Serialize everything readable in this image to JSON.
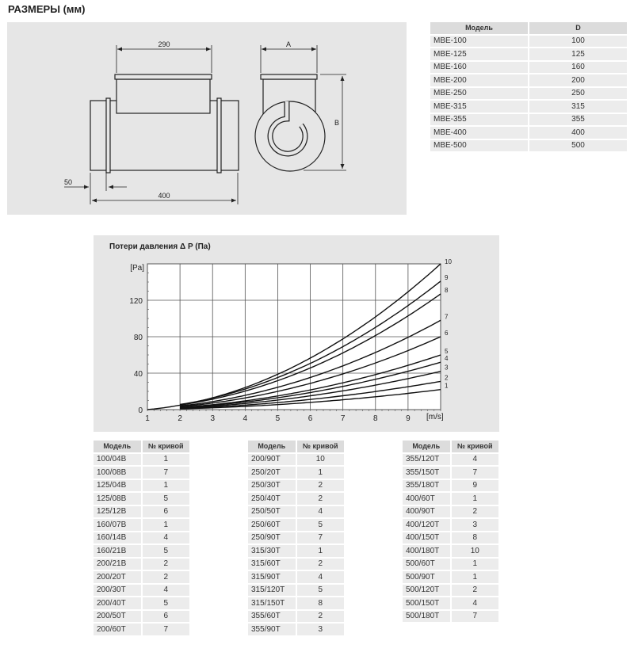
{
  "title": "РАЗМЕРЫ (мм)",
  "drawing": {
    "dim_290": "290",
    "dim_400": "400",
    "dim_50": "50",
    "dim_a": "A",
    "dim_b": "B"
  },
  "dims_table": {
    "headers": [
      "Модель",
      "D"
    ],
    "rows": [
      [
        "MBE-100",
        "100"
      ],
      [
        "MBE-125",
        "125"
      ],
      [
        "MBE-160",
        "160"
      ],
      [
        "MBE-200",
        "200"
      ],
      [
        "MBE-250",
        "250"
      ],
      [
        "MBE-315",
        "315"
      ],
      [
        "MBE-355",
        "355"
      ],
      [
        "MBE-400",
        "400"
      ],
      [
        "MBE-500",
        "500"
      ]
    ]
  },
  "chart_data": {
    "type": "line",
    "title": "Потери давления Δ P  (Па)",
    "ylabel": "[Pa]",
    "xlabel": "[m/s]",
    "xlim": [
      1,
      10
    ],
    "ylim": [
      0,
      160
    ],
    "xticks": [
      "1",
      "2",
      "3",
      "4",
      "5",
      "6",
      "7",
      "8",
      "9"
    ],
    "yticks": [
      "0",
      "40",
      "80",
      "120"
    ],
    "grid": true,
    "series": [
      {
        "name": "1",
        "end": 22
      },
      {
        "name": "2",
        "end": 31
      },
      {
        "name": "3",
        "end": 42
      },
      {
        "name": "4",
        "end": 52
      },
      {
        "name": "5",
        "end": 60
      },
      {
        "name": "6",
        "end": 80
      },
      {
        "name": "7",
        "end": 98
      },
      {
        "name": "8",
        "end": 127
      },
      {
        "name": "9",
        "end": 141
      },
      {
        "name": "10",
        "end": 160
      }
    ]
  },
  "curve_tables": [
    {
      "headers": [
        "Модель",
        "№ кривой"
      ],
      "rows": [
        [
          "100/04B",
          "1"
        ],
        [
          "100/08B",
          "7"
        ],
        [
          "125/04B",
          "1"
        ],
        [
          "125/08B",
          "5"
        ],
        [
          "125/12B",
          "6"
        ],
        [
          "160/07B",
          "1"
        ],
        [
          "160/14B",
          "4"
        ],
        [
          "160/21B",
          "5"
        ],
        [
          "200/21B",
          "2"
        ],
        [
          "200/20T",
          "2"
        ],
        [
          "200/30T",
          "4"
        ],
        [
          "200/40T",
          "5"
        ],
        [
          "200/50T",
          "6"
        ],
        [
          "200/60T",
          "7"
        ]
      ]
    },
    {
      "headers": [
        "Модель",
        "№ кривой"
      ],
      "rows": [
        [
          "200/90T",
          "10"
        ],
        [
          "250/20T",
          "1"
        ],
        [
          "250/30T",
          "2"
        ],
        [
          "250/40T",
          "2"
        ],
        [
          "250/50T",
          "4"
        ],
        [
          "250/60T",
          "5"
        ],
        [
          "250/90T",
          "7"
        ],
        [
          "315/30T",
          "1"
        ],
        [
          "315/60T",
          "2"
        ],
        [
          "315/90T",
          "4"
        ],
        [
          "315/120T",
          "5"
        ],
        [
          "315/150T",
          "8"
        ],
        [
          "355/60T",
          "2"
        ],
        [
          "355/90T",
          "3"
        ]
      ]
    },
    {
      "headers": [
        "Модель",
        "№ кривой"
      ],
      "rows": [
        [
          "355/120T",
          "4"
        ],
        [
          "355/150T",
          "7"
        ],
        [
          "355/180T",
          "9"
        ],
        [
          "400/60T",
          "1"
        ],
        [
          "400/90T",
          "2"
        ],
        [
          "400/120T",
          "3"
        ],
        [
          "400/150T",
          "8"
        ],
        [
          "400/180T",
          "10"
        ],
        [
          "500/60T",
          "1"
        ],
        [
          "500/90T",
          "1"
        ],
        [
          "500/120T",
          "2"
        ],
        [
          "500/150T",
          "4"
        ],
        [
          "500/180T",
          "7"
        ]
      ]
    }
  ]
}
